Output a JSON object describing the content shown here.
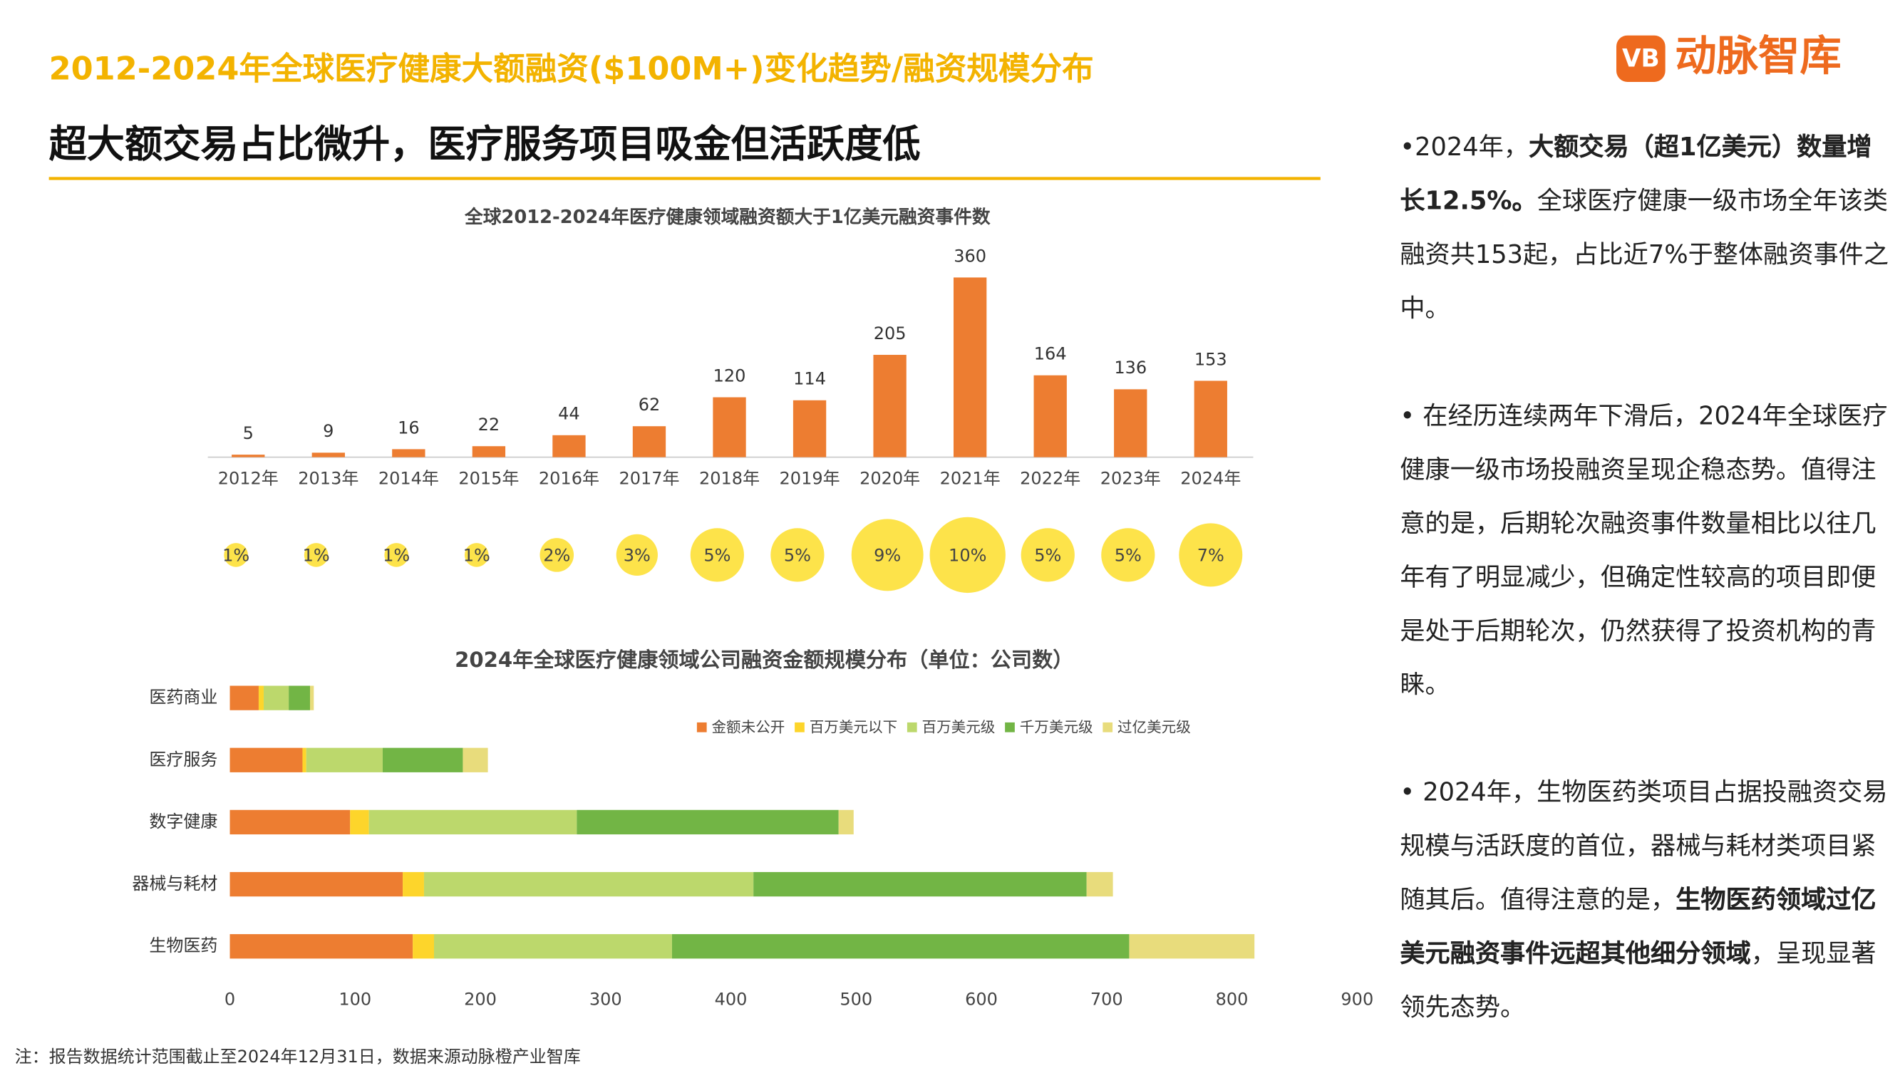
{
  "header": {
    "title": "2012-2024年全球医疗健康大额融资($100M+)变化趋势/融资规模分布",
    "subtitle": "超大额交易占比微升，医疗服务项目吸金但活跃度低",
    "logo": "动脉智库",
    "logo_icon": "VB"
  },
  "chart_data": [
    {
      "type": "bar",
      "title": "全球2012-2024年医疗健康领域融资额大于1亿美元融资事件数",
      "categories": [
        "2012年",
        "2013年",
        "2014年",
        "2015年",
        "2016年",
        "2017年",
        "2018年",
        "2019年",
        "2020年",
        "2021年",
        "2022年",
        "2023年",
        "2024年"
      ],
      "values": [
        5,
        9,
        16,
        22,
        44,
        62,
        120,
        114,
        205,
        360,
        164,
        136,
        153
      ],
      "color": "#ed7d31",
      "share": {
        "values": [
          1,
          1,
          1,
          1,
          2,
          3,
          5,
          5,
          9,
          10,
          5,
          5,
          7
        ],
        "value_labels": [
          "1%",
          "1%",
          "1%",
          "1%",
          "2%",
          "3%",
          "5%",
          "5%",
          "9%",
          "10%",
          "5%",
          "5%",
          "7%"
        ],
        "color": "#fde34a"
      }
    },
    {
      "type": "stacked-hbar",
      "title": "2024年全球医疗健康领域公司融资金额规模分布（单位：公司数）",
      "categories": [
        "医药商业",
        "医疗服务",
        "数字健康",
        "器械与耗材",
        "生物医药"
      ],
      "series": [
        {
          "name": "金额未公开",
          "color": "#ed7d31",
          "values": [
            23,
            58,
            96,
            138,
            146
          ]
        },
        {
          "name": "百万美元以下",
          "color": "#fdd52b",
          "values": [
            4,
            3,
            15,
            17,
            17
          ]
        },
        {
          "name": "百万美元级",
          "color": "#bcd86c",
          "values": [
            20,
            61,
            166,
            263,
            190
          ]
        },
        {
          "name": "千万美元级",
          "color": "#72b545",
          "values": [
            17,
            64,
            209,
            266,
            365
          ]
        },
        {
          "name": "过亿美元级",
          "color": "#e8dc7c",
          "values": [
            3,
            20,
            12,
            21,
            100
          ]
        }
      ],
      "xlim": [
        0,
        900
      ],
      "xticks": [
        0,
        100,
        200,
        300,
        400,
        500,
        600,
        700,
        800,
        900
      ],
      "legend": "top-right"
    }
  ],
  "text_panel": {
    "paragraphs": [
      [
        {
          "text": "•2024年，",
          "bold": false
        },
        {
          "text": "大额交易（超1亿美元）数量增长12.5%。",
          "bold": true
        },
        {
          "text": "全球医疗健康一级市场全年该类融资共153起，占比近7%于整体融资事件之中。",
          "bold": false
        }
      ],
      [
        {
          "text": "• 在经历连续两年下滑后，2024年全球医疗健康一级市场投融资呈现企稳态势。值得注意的是，后期轮次融资事件数量相比以往几年有了明显减少，但确定性较高的项目即便是处于后期轮次，仍然获得了投资机构的青睐。",
          "bold": false
        }
      ],
      [
        {
          "text": "• 2024年，生物医药类项目占据投融资交易规模与活跃度的首位，器械与耗材类项目紧随其后。值得注意的是，",
          "bold": false
        },
        {
          "text": "生物医药领域过亿美元融资事件远超其他细分领域",
          "bold": true
        },
        {
          "text": "，呈现显著领先态势。",
          "bold": false
        }
      ]
    ]
  },
  "footnote": "注：报告数据统计范围截止至2024年12月31日，数据来源动脉橙产业智库"
}
